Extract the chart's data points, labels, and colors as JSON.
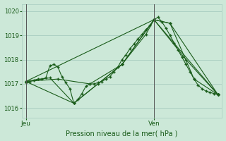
{
  "background_color": "#cce8d8",
  "grid_color": "#a8ccc0",
  "line_color": "#1a5c1a",
  "ylabel_text": "Pression niveau de la mer( hPa )",
  "xlabel_jeu": "Jeu",
  "xlabel_ven": "Ven",
  "ylim": [
    1015.6,
    1020.3
  ],
  "xlim": [
    -1,
    49
  ],
  "yticks": [
    1016,
    1017,
    1018,
    1019,
    1020
  ],
  "jeu_x": 0,
  "ven_x": 32,
  "figsize": [
    3.2,
    2.0
  ],
  "dpi": 100,
  "series": [
    {
      "x": [
        0,
        1,
        2,
        3,
        4,
        5,
        6,
        7,
        8,
        9,
        10,
        11,
        12,
        13,
        14,
        15,
        16,
        17,
        18,
        19,
        20,
        21,
        22,
        23,
        24,
        25,
        26,
        27,
        28,
        29,
        30,
        31,
        32,
        33,
        34,
        35,
        36,
        37,
        38,
        39,
        40,
        41,
        42,
        43,
        44,
        45,
        46,
        47,
        48
      ],
      "y": [
        1017.05,
        1017.1,
        1017.15,
        1017.2,
        1017.2,
        1017.25,
        1017.75,
        1017.8,
        1017.7,
        1017.3,
        1017.05,
        1016.8,
        1016.2,
        1016.35,
        1016.6,
        1016.9,
        1017.0,
        1017.0,
        1017.05,
        1017.1,
        1017.2,
        1017.3,
        1017.5,
        1017.7,
        1018.0,
        1018.2,
        1018.45,
        1018.65,
        1018.85,
        1019.05,
        1019.25,
        1019.4,
        1019.65,
        1019.75,
        1019.55,
        1019.3,
        1019.0,
        1018.7,
        1018.4,
        1018.1,
        1017.8,
        1017.5,
        1017.2,
        1016.95,
        1016.8,
        1016.7,
        1016.65,
        1016.6,
        1016.55
      ],
      "marker": "+"
    },
    {
      "x": [
        0,
        6,
        12,
        18,
        24,
        30,
        32,
        36,
        42,
        48
      ],
      "y": [
        1017.1,
        1017.25,
        1016.2,
        1017.0,
        1017.8,
        1019.05,
        1019.65,
        1019.5,
        1017.2,
        1016.55
      ],
      "marker": "+"
    },
    {
      "x": [
        0,
        8,
        16,
        24,
        32,
        40,
        48
      ],
      "y": [
        1017.1,
        1017.2,
        1017.0,
        1017.8,
        1019.65,
        1018.0,
        1016.55
      ],
      "marker": "+"
    },
    {
      "x": [
        0,
        12,
        24,
        32,
        36,
        48
      ],
      "y": [
        1017.1,
        1016.2,
        1017.8,
        1019.65,
        1019.5,
        1016.55
      ],
      "marker": "+"
    },
    {
      "x": [
        0,
        32,
        48
      ],
      "y": [
        1017.1,
        1019.65,
        1016.55
      ],
      "marker": "+"
    }
  ]
}
